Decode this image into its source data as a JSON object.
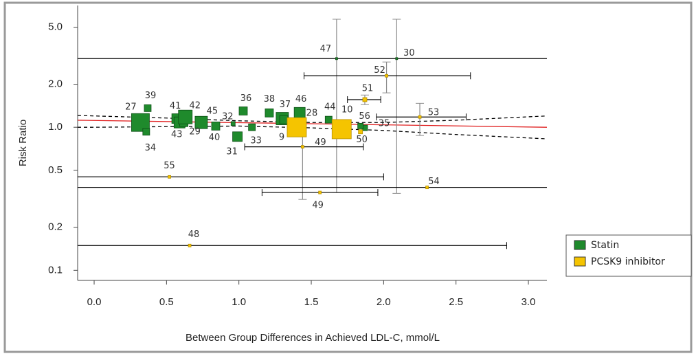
{
  "chart_data": {
    "type": "scatter",
    "x_label": "Between Group Differences in Achieved LDL-C, mmol/L",
    "y_label": "Risk Ratio",
    "y_scale": "log",
    "xlim": [
      -0.114,
      3.128
    ],
    "ylim": [
      0.085,
      7.1
    ],
    "xticks": [
      {
        "value": 0,
        "label": "0.0"
      },
      0.5,
      {
        "value": 1,
        "label": "1.0"
      },
      1.5,
      {
        "value": 2,
        "label": "2.0"
      },
      2.5,
      {
        "value": 3,
        "label": "3.0"
      }
    ],
    "yticks": [
      {
        "value": 5,
        "label": "5.0"
      },
      {
        "value": 2,
        "label": "2.0"
      },
      {
        "value": 1,
        "label": "1.0"
      },
      0.5,
      0.2,
      0.1
    ],
    "legend": "lower right outside",
    "xerr_color": "#000000",
    "yerr_color": "#8c8c8c",
    "series": [
      {
        "name": "Statin",
        "color": "#1f8a2c",
        "edge_color": "#0d4f16",
        "labels": [
          "27",
          "34",
          "39",
          "41",
          "43",
          "29",
          "42",
          "45",
          "40",
          "32",
          "31",
          "36",
          "33",
          "38",
          "37",
          "9",
          "46",
          "44",
          "47",
          "30",
          "35",
          "56"
        ],
        "x": [
          0.32,
          0.36,
          0.37,
          0.57,
          0.59,
          0.62,
          0.63,
          0.74,
          0.84,
          0.96,
          0.99,
          1.03,
          1.09,
          1.21,
          1.3,
          1.31,
          1.42,
          1.62,
          1.675,
          2.09,
          1.87,
          1.84
        ],
        "y": [
          1.08,
          0.93,
          1.36,
          1.15,
          1.08,
          1.08,
          1.18,
          1.08,
          1.02,
          1.06,
          0.86,
          1.3,
          1.0,
          1.26,
          1.15,
          1.13,
          1.26,
          1.13,
          3.02,
          3.02,
          0.99,
          1.02
        ],
        "size": [
          26,
          10,
          10,
          14,
          16,
          12,
          20,
          18,
          12,
          6,
          14,
          12,
          10,
          12,
          18,
          12,
          16,
          10,
          3,
          3,
          8,
          8
        ],
        "x_low": [
          null,
          null,
          null,
          null,
          null,
          null,
          null,
          null,
          null,
          null,
          null,
          null,
          null,
          null,
          null,
          null,
          null,
          null,
          -0.114,
          null,
          null,
          null
        ],
        "x_high": [
          null,
          null,
          null,
          null,
          null,
          null,
          null,
          null,
          null,
          null,
          null,
          null,
          null,
          null,
          null,
          null,
          null,
          null,
          3.128,
          null,
          null,
          null
        ],
        "y_low": [
          null,
          null,
          null,
          null,
          null,
          null,
          null,
          null,
          null,
          null,
          null,
          null,
          null,
          null,
          null,
          null,
          null,
          null,
          0.35,
          0.345,
          null,
          null
        ],
        "y_high": [
          null,
          null,
          null,
          null,
          null,
          null,
          null,
          null,
          null,
          null,
          null,
          null,
          null,
          null,
          null,
          null,
          null,
          null,
          5.69,
          5.69,
          null,
          null
        ]
      },
      {
        "name": "PCSK9 inhibitor",
        "color": "#f5c400",
        "edge_color": "#b58f00",
        "labels": [
          "28",
          "10",
          "49",
          "49",
          "50",
          "51",
          "52",
          "53",
          "54",
          "55",
          "48"
        ],
        "x": [
          1.4,
          1.71,
          1.44,
          1.56,
          1.84,
          1.87,
          2.02,
          2.25,
          2.3,
          0.52,
          0.66
        ],
        "y": [
          1.0,
          0.97,
          0.73,
          0.35,
          0.93,
          1.56,
          2.29,
          1.18,
          0.38,
          0.45,
          0.149
        ],
        "size": [
          28,
          28,
          4,
          4,
          6,
          6,
          4,
          4,
          4,
          4,
          4
        ],
        "x_low": [
          null,
          null,
          1.04,
          1.16,
          null,
          1.75,
          1.45,
          1.95,
          -0.114,
          -0.114,
          -0.114
        ],
        "x_high": [
          null,
          null,
          1.86,
          1.96,
          null,
          1.98,
          2.6,
          2.57,
          3.128,
          2.0,
          2.85
        ],
        "y_low": [
          null,
          null,
          0.313,
          null,
          null,
          1.44,
          1.74,
          0.876,
          null,
          null,
          null
        ],
        "y_high": [
          null,
          null,
          1.06,
          null,
          null,
          1.68,
          2.86,
          1.47,
          null,
          null,
          null
        ]
      }
    ],
    "fit": {
      "color": "#e02020",
      "x": [
        -0.114,
        3.128
      ],
      "y": [
        1.12,
        1.0
      ]
    },
    "fit_upper": {
      "color": "#000000",
      "x": [
        -0.114,
        0,
        0.5,
        1.0,
        1.5,
        2.0,
        2.5,
        3.128
      ],
      "y": [
        1.21,
        1.2,
        1.16,
        1.11,
        1.08,
        1.08,
        1.12,
        1.2
      ]
    },
    "fit_lower": {
      "color": "#000000",
      "x": [
        -0.114,
        0,
        0.5,
        1.0,
        1.5,
        2.0,
        2.5,
        3.128
      ],
      "y": [
        1.0,
        1.0,
        1.01,
        1.02,
        0.99,
        0.95,
        0.89,
        0.83
      ]
    }
  }
}
